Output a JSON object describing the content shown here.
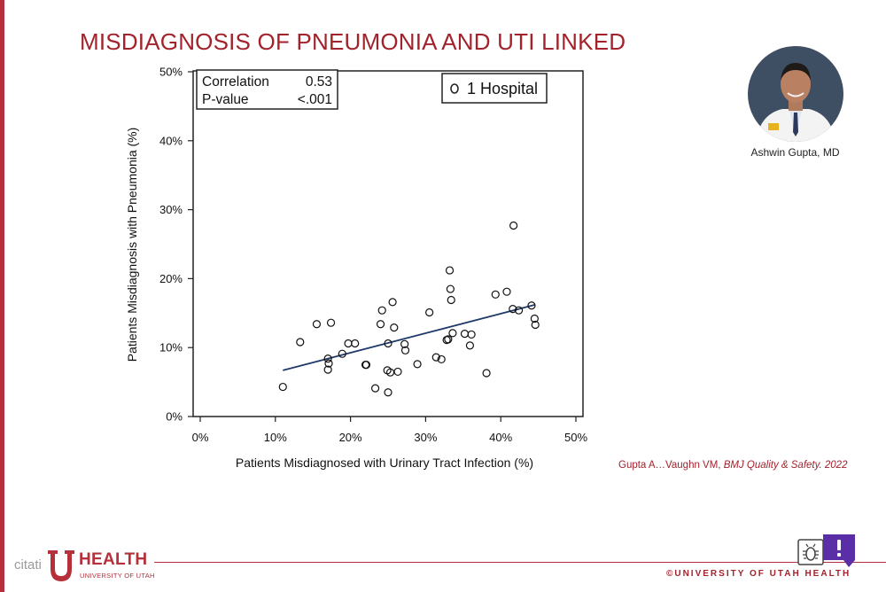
{
  "slide": {
    "title": "MISDIAGNOSIS OF PNEUMONIA AND UTI LINKED",
    "presenter_name": "Ashwin Gupta, MD",
    "citation_authors": "Gupta A…Vaughn VM, ",
    "citation_journal": "BMJ Quality & Safety. 2022",
    "watermark": "citati",
    "logo_text": "HEALTH",
    "logo_subtext": "UNIVERSITY OF UTAH",
    "copyright": "©UNIVERSITY OF UTAH HEALTH"
  },
  "icons": [
    "presenter-photo-icon",
    "university-logo-icon",
    "bug-report-icon",
    "feedback-icon"
  ],
  "colors": {
    "accent": "#a3222c",
    "fit_line": "#1f3a68"
  },
  "chart_data": {
    "type": "scatter",
    "title": "",
    "xlabel": "Patients Misdiagnosed with Urinary Tract Infection (%)",
    "ylabel": "Patients Misdiagnosis with Pneumonia (%)",
    "xlim": [
      0,
      50
    ],
    "ylim": [
      0,
      50
    ],
    "x_ticks": [
      "0%",
      "10%",
      "20%",
      "30%",
      "40%",
      "50%"
    ],
    "y_ticks": [
      "0%",
      "10%",
      "20%",
      "30%",
      "40%",
      "50%"
    ],
    "grid": false,
    "legend": {
      "position": "top-right",
      "entries": [
        "1 Hospital"
      ]
    },
    "stats": {
      "correlation_label": "Correlation",
      "correlation_value": "0.53",
      "pvalue_label": "P-value",
      "pvalue_value": "<.001"
    },
    "fit_line": {
      "x": [
        11,
        44.5
      ],
      "y": [
        6.7,
        16.2
      ]
    },
    "points": [
      [
        11.0,
        4.3
      ],
      [
        13.3,
        10.8
      ],
      [
        15.5,
        13.4
      ],
      [
        17.0,
        8.4
      ],
      [
        17.0,
        6.8
      ],
      [
        17.1,
        7.7
      ],
      [
        17.4,
        13.6
      ],
      [
        18.9,
        9.1
      ],
      [
        19.7,
        10.6
      ],
      [
        20.6,
        10.6
      ],
      [
        22.0,
        7.5
      ],
      [
        22.1,
        7.5
      ],
      [
        23.3,
        4.1
      ],
      [
        24.0,
        13.4
      ],
      [
        24.2,
        15.4
      ],
      [
        24.9,
        6.7
      ],
      [
        25.0,
        10.6
      ],
      [
        25.0,
        3.5
      ],
      [
        25.3,
        6.4
      ],
      [
        25.6,
        16.6
      ],
      [
        25.8,
        12.9
      ],
      [
        26.3,
        6.5
      ],
      [
        27.2,
        10.5
      ],
      [
        27.3,
        9.6
      ],
      [
        28.9,
        7.6
      ],
      [
        30.5,
        15.1
      ],
      [
        31.4,
        8.6
      ],
      [
        32.1,
        8.3
      ],
      [
        32.8,
        11.1
      ],
      [
        33.0,
        11.2
      ],
      [
        33.2,
        21.2
      ],
      [
        33.3,
        18.5
      ],
      [
        33.4,
        16.9
      ],
      [
        33.6,
        12.1
      ],
      [
        35.2,
        12.0
      ],
      [
        35.9,
        10.3
      ],
      [
        36.1,
        11.9
      ],
      [
        38.1,
        6.3
      ],
      [
        39.3,
        17.7
      ],
      [
        40.8,
        18.1
      ],
      [
        41.6,
        15.6
      ],
      [
        41.7,
        27.7
      ],
      [
        42.4,
        15.4
      ],
      [
        44.1,
        16.1
      ],
      [
        44.5,
        14.2
      ],
      [
        44.6,
        13.3
      ]
    ]
  }
}
